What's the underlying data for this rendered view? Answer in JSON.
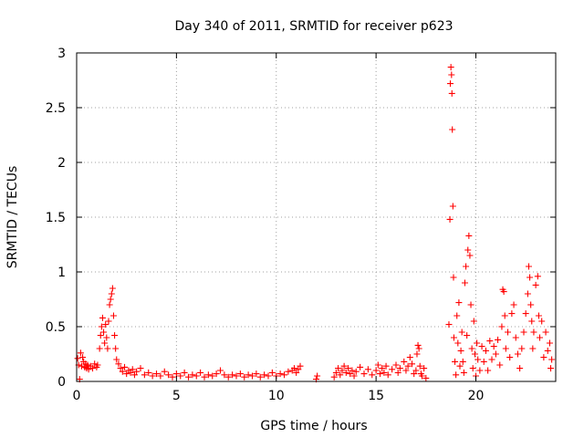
{
  "chart_data": {
    "type": "scatter",
    "title": "Day 340 of 2011, SRMTID for receiver p623",
    "xlabel": "GPS time / hours",
    "ylabel": "SRMTID / TECUs",
    "xlim": [
      0,
      24
    ],
    "ylim": [
      0,
      3
    ],
    "xticks": [
      0,
      5,
      10,
      15,
      20
    ],
    "xtick_labels": [
      "0",
      "5",
      "10",
      "15",
      "20"
    ],
    "yticks": [
      0,
      0.5,
      1,
      1.5,
      2,
      2.5,
      3
    ],
    "ytick_labels": [
      "0",
      "0.5",
      "1",
      "1.5",
      "2",
      "2.5",
      "3"
    ],
    "grid": true,
    "marker": "+",
    "color": "#ff0000",
    "series": [
      {
        "name": "SRMTID",
        "points": [
          [
            0.05,
            0.21
          ],
          [
            0.1,
            0.15
          ],
          [
            0.15,
            0.02
          ],
          [
            0.2,
            0.26
          ],
          [
            0.25,
            0.14
          ],
          [
            0.3,
            0.22
          ],
          [
            0.35,
            0.18
          ],
          [
            0.4,
            0.13
          ],
          [
            0.45,
            0.16
          ],
          [
            0.5,
            0.12
          ],
          [
            0.55,
            0.15
          ],
          [
            0.6,
            0.11
          ],
          [
            0.7,
            0.14
          ],
          [
            0.8,
            0.12
          ],
          [
            0.9,
            0.16
          ],
          [
            1.0,
            0.13
          ],
          [
            1.05,
            0.15
          ],
          [
            1.15,
            0.3
          ],
          [
            1.2,
            0.42
          ],
          [
            1.25,
            0.5
          ],
          [
            1.3,
            0.58
          ],
          [
            1.35,
            0.45
          ],
          [
            1.4,
            0.35
          ],
          [
            1.45,
            0.52
          ],
          [
            1.5,
            0.4
          ],
          [
            1.55,
            0.3
          ],
          [
            1.6,
            0.55
          ],
          [
            1.65,
            0.7
          ],
          [
            1.7,
            0.75
          ],
          [
            1.75,
            0.8
          ],
          [
            1.8,
            0.85
          ],
          [
            1.85,
            0.6
          ],
          [
            1.9,
            0.42
          ],
          [
            1.95,
            0.3
          ],
          [
            2.0,
            0.2
          ],
          [
            2.1,
            0.16
          ],
          [
            2.2,
            0.12
          ],
          [
            2.3,
            0.09
          ],
          [
            2.4,
            0.13
          ],
          [
            2.5,
            0.07
          ],
          [
            2.6,
            0.1
          ],
          [
            2.7,
            0.08
          ],
          [
            2.8,
            0.11
          ],
          [
            2.9,
            0.06
          ],
          [
            3.0,
            0.09
          ],
          [
            3.2,
            0.12
          ],
          [
            3.4,
            0.06
          ],
          [
            3.6,
            0.08
          ],
          [
            3.8,
            0.05
          ],
          [
            4.0,
            0.07
          ],
          [
            4.2,
            0.05
          ],
          [
            4.4,
            0.09
          ],
          [
            4.6,
            0.06
          ],
          [
            4.8,
            0.04
          ],
          [
            5.0,
            0.07
          ],
          [
            5.2,
            0.05
          ],
          [
            5.4,
            0.08
          ],
          [
            5.6,
            0.04
          ],
          [
            5.8,
            0.06
          ],
          [
            6.0,
            0.05
          ],
          [
            6.2,
            0.08
          ],
          [
            6.4,
            0.04
          ],
          [
            6.6,
            0.06
          ],
          [
            6.8,
            0.05
          ],
          [
            7.0,
            0.07
          ],
          [
            7.2,
            0.1
          ],
          [
            7.4,
            0.06
          ],
          [
            7.6,
            0.04
          ],
          [
            7.8,
            0.06
          ],
          [
            8.0,
            0.05
          ],
          [
            8.2,
            0.07
          ],
          [
            8.4,
            0.04
          ],
          [
            8.6,
            0.06
          ],
          [
            8.8,
            0.05
          ],
          [
            9.0,
            0.07
          ],
          [
            9.2,
            0.04
          ],
          [
            9.4,
            0.06
          ],
          [
            9.6,
            0.05
          ],
          [
            9.8,
            0.08
          ],
          [
            10.0,
            0.05
          ],
          [
            10.2,
            0.07
          ],
          [
            10.4,
            0.06
          ],
          [
            10.6,
            0.09
          ],
          [
            10.8,
            0.1
          ],
          [
            10.9,
            0.12
          ],
          [
            11.0,
            0.08
          ],
          [
            11.1,
            0.11
          ],
          [
            11.2,
            0.14
          ],
          [
            12.0,
            0.02
          ],
          [
            12.05,
            0.05
          ],
          [
            12.9,
            0.04
          ],
          [
            13.0,
            0.08
          ],
          [
            13.1,
            0.12
          ],
          [
            13.2,
            0.06
          ],
          [
            13.3,
            0.1
          ],
          [
            13.4,
            0.14
          ],
          [
            13.5,
            0.08
          ],
          [
            13.6,
            0.12
          ],
          [
            13.7,
            0.07
          ],
          [
            13.8,
            0.1
          ],
          [
            13.9,
            0.05
          ],
          [
            14.0,
            0.09
          ],
          [
            14.2,
            0.13
          ],
          [
            14.4,
            0.07
          ],
          [
            14.6,
            0.11
          ],
          [
            14.8,
            0.06
          ],
          [
            15.0,
            0.1
          ],
          [
            15.1,
            0.15
          ],
          [
            15.2,
            0.07
          ],
          [
            15.3,
            0.12
          ],
          [
            15.4,
            0.08
          ],
          [
            15.5,
            0.14
          ],
          [
            15.6,
            0.06
          ],
          [
            15.8,
            0.11
          ],
          [
            16.0,
            0.15
          ],
          [
            16.1,
            0.08
          ],
          [
            16.2,
            0.12
          ],
          [
            16.4,
            0.18
          ],
          [
            16.5,
            0.1
          ],
          [
            16.6,
            0.14
          ],
          [
            16.7,
            0.22
          ],
          [
            16.8,
            0.16
          ],
          [
            16.9,
            0.07
          ],
          [
            17.0,
            0.1
          ],
          [
            17.05,
            0.25
          ],
          [
            17.1,
            0.33
          ],
          [
            17.15,
            0.3
          ],
          [
            17.2,
            0.14
          ],
          [
            17.25,
            0.07
          ],
          [
            17.3,
            0.05
          ],
          [
            17.4,
            0.12
          ],
          [
            17.5,
            0.03
          ],
          [
            18.65,
            0.52
          ],
          [
            18.7,
            1.48
          ],
          [
            18.72,
            2.72
          ],
          [
            18.75,
            2.87
          ],
          [
            18.78,
            2.8
          ],
          [
            18.8,
            2.63
          ],
          [
            18.82,
            2.3
          ],
          [
            18.85,
            1.6
          ],
          [
            18.88,
            0.95
          ],
          [
            18.9,
            0.4
          ],
          [
            18.95,
            0.18
          ],
          [
            19.0,
            0.06
          ],
          [
            19.05,
            0.6
          ],
          [
            19.1,
            0.35
          ],
          [
            19.15,
            0.72
          ],
          [
            19.2,
            0.14
          ],
          [
            19.25,
            0.28
          ],
          [
            19.3,
            0.45
          ],
          [
            19.35,
            0.18
          ],
          [
            19.4,
            0.08
          ],
          [
            19.45,
            0.9
          ],
          [
            19.5,
            1.05
          ],
          [
            19.55,
            0.42
          ],
          [
            19.6,
            1.2
          ],
          [
            19.65,
            1.33
          ],
          [
            19.7,
            1.15
          ],
          [
            19.75,
            0.7
          ],
          [
            19.8,
            0.3
          ],
          [
            19.85,
            0.12
          ],
          [
            19.9,
            0.55
          ],
          [
            19.95,
            0.25
          ],
          [
            20.0,
            0.05
          ],
          [
            20.05,
            0.35
          ],
          [
            20.1,
            0.2
          ],
          [
            20.2,
            0.1
          ],
          [
            20.3,
            0.32
          ],
          [
            20.4,
            0.18
          ],
          [
            20.5,
            0.28
          ],
          [
            20.6,
            0.1
          ],
          [
            20.7,
            0.37
          ],
          [
            20.8,
            0.2
          ],
          [
            20.9,
            0.32
          ],
          [
            21.0,
            0.25
          ],
          [
            21.1,
            0.38
          ],
          [
            21.2,
            0.15
          ],
          [
            21.3,
            0.5
          ],
          [
            21.35,
            0.84
          ],
          [
            21.4,
            0.82
          ],
          [
            21.45,
            0.6
          ],
          [
            21.5,
            0.3
          ],
          [
            21.6,
            0.45
          ],
          [
            21.7,
            0.22
          ],
          [
            21.8,
            0.62
          ],
          [
            21.9,
            0.7
          ],
          [
            22.0,
            0.4
          ],
          [
            22.1,
            0.25
          ],
          [
            22.2,
            0.12
          ],
          [
            22.3,
            0.3
          ],
          [
            22.4,
            0.45
          ],
          [
            22.5,
            0.62
          ],
          [
            22.6,
            0.8
          ],
          [
            22.65,
            1.05
          ],
          [
            22.7,
            0.95
          ],
          [
            22.75,
            0.7
          ],
          [
            22.8,
            0.55
          ],
          [
            22.85,
            0.3
          ],
          [
            22.9,
            0.45
          ],
          [
            23.0,
            0.88
          ],
          [
            23.1,
            0.96
          ],
          [
            23.15,
            0.6
          ],
          [
            23.2,
            0.4
          ],
          [
            23.3,
            0.55
          ],
          [
            23.4,
            0.22
          ],
          [
            23.5,
            0.45
          ],
          [
            23.6,
            0.28
          ],
          [
            23.7,
            0.35
          ],
          [
            23.75,
            0.12
          ],
          [
            23.8,
            0.2
          ]
        ]
      }
    ]
  }
}
